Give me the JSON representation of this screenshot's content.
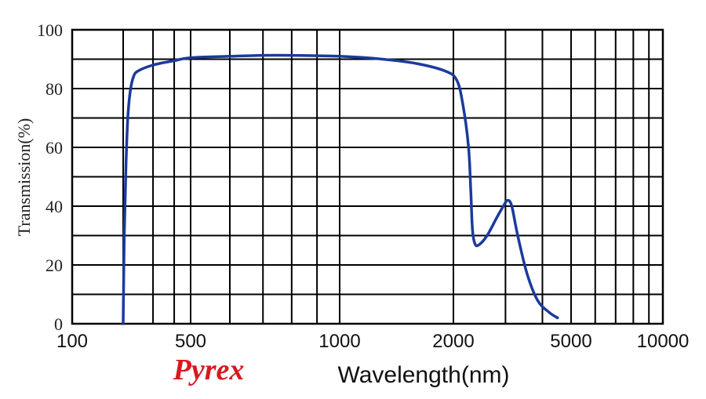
{
  "chart_data": {
    "type": "line",
    "title": "",
    "caption": "Pyrex",
    "xlabel": "Wavelength(nm)",
    "ylabel": "Transmission(%)",
    "ylim": [
      0,
      100
    ],
    "y_ticks": [
      0,
      20,
      40,
      60,
      80,
      100
    ],
    "x_ticks": [
      "100",
      "500",
      "1000",
      "2000",
      "5000",
      "10000"
    ],
    "grid": true,
    "series": [
      {
        "color": "#1b3a9c",
        "points": [
          {
            "x": 200,
            "y": 0
          },
          {
            "x": 203,
            "y": 30
          },
          {
            "x": 208,
            "y": 55
          },
          {
            "x": 213,
            "y": 70
          },
          {
            "x": 220,
            "y": 79
          },
          {
            "x": 230,
            "y": 84
          },
          {
            "x": 245,
            "y": 86
          },
          {
            "x": 300,
            "y": 88
          },
          {
            "x": 400,
            "y": 89.5
          },
          {
            "x": 500,
            "y": 90.5
          },
          {
            "x": 600,
            "y": 91
          },
          {
            "x": 700,
            "y": 91.3
          },
          {
            "x": 800,
            "y": 91.3
          },
          {
            "x": 1000,
            "y": 91
          },
          {
            "x": 1300,
            "y": 90
          },
          {
            "x": 1600,
            "y": 88.5
          },
          {
            "x": 1900,
            "y": 86
          },
          {
            "x": 2050,
            "y": 83
          },
          {
            "x": 2150,
            "y": 75
          },
          {
            "x": 2250,
            "y": 60
          },
          {
            "x": 2290,
            "y": 45
          },
          {
            "x": 2320,
            "y": 32
          },
          {
            "x": 2370,
            "y": 27
          },
          {
            "x": 2450,
            "y": 27
          },
          {
            "x": 2600,
            "y": 30
          },
          {
            "x": 2800,
            "y": 36
          },
          {
            "x": 2950,
            "y": 40
          },
          {
            "x": 3050,
            "y": 42
          },
          {
            "x": 3150,
            "y": 40
          },
          {
            "x": 3300,
            "y": 30
          },
          {
            "x": 3550,
            "y": 17
          },
          {
            "x": 3850,
            "y": 8
          },
          {
            "x": 4200,
            "y": 4
          },
          {
            "x": 4500,
            "y": 2
          }
        ]
      }
    ]
  },
  "colors": {
    "line": "#1b3a9c",
    "caption": "#d71920",
    "grid": "#000000",
    "text": "#222222"
  }
}
